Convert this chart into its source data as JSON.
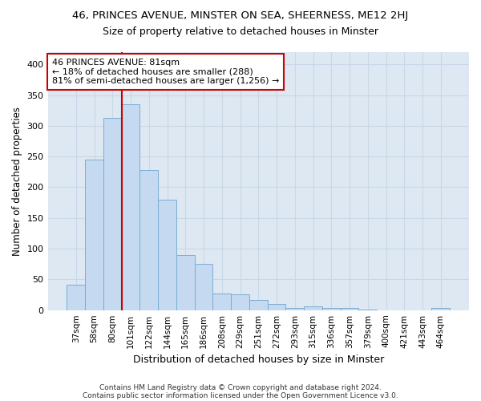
{
  "title1": "46, PRINCES AVENUE, MINSTER ON SEA, SHEERNESS, ME12 2HJ",
  "title2": "Size of property relative to detached houses in Minster",
  "xlabel": "Distribution of detached houses by size in Minster",
  "ylabel": "Number of detached properties",
  "bar_color": "#c5d9f0",
  "bar_edge_color": "#7aadd4",
  "vline_color": "#cc0000",
  "vline_x_index": 2,
  "annotation_line1": "46 PRINCES AVENUE: 81sqm",
  "annotation_line2": "← 18% of detached houses are smaller (288)",
  "annotation_line3": "81% of semi-detached houses are larger (1,256) →",
  "annotation_box_color": "#ffffff",
  "annotation_box_edge": "#cc0000",
  "categories": [
    "37sqm",
    "58sqm",
    "80sqm",
    "101sqm",
    "122sqm",
    "144sqm",
    "165sqm",
    "186sqm",
    "208sqm",
    "229sqm",
    "251sqm",
    "272sqm",
    "293sqm",
    "315sqm",
    "336sqm",
    "357sqm",
    "379sqm",
    "400sqm",
    "421sqm",
    "443sqm",
    "464sqm"
  ],
  "values": [
    42,
    245,
    313,
    335,
    228,
    180,
    90,
    75,
    27,
    26,
    17,
    10,
    4,
    6,
    4,
    3,
    1,
    0,
    0,
    0,
    3
  ],
  "ylim": [
    0,
    420
  ],
  "yticks": [
    0,
    50,
    100,
    150,
    200,
    250,
    300,
    350,
    400
  ],
  "grid_color": "#c8d8e8",
  "footnote1": "Contains HM Land Registry data © Crown copyright and database right 2024.",
  "footnote2": "Contains public sector information licensed under the Open Government Licence v3.0.",
  "bg_color": "#ffffff",
  "plot_bg_color": "#dde8f2"
}
